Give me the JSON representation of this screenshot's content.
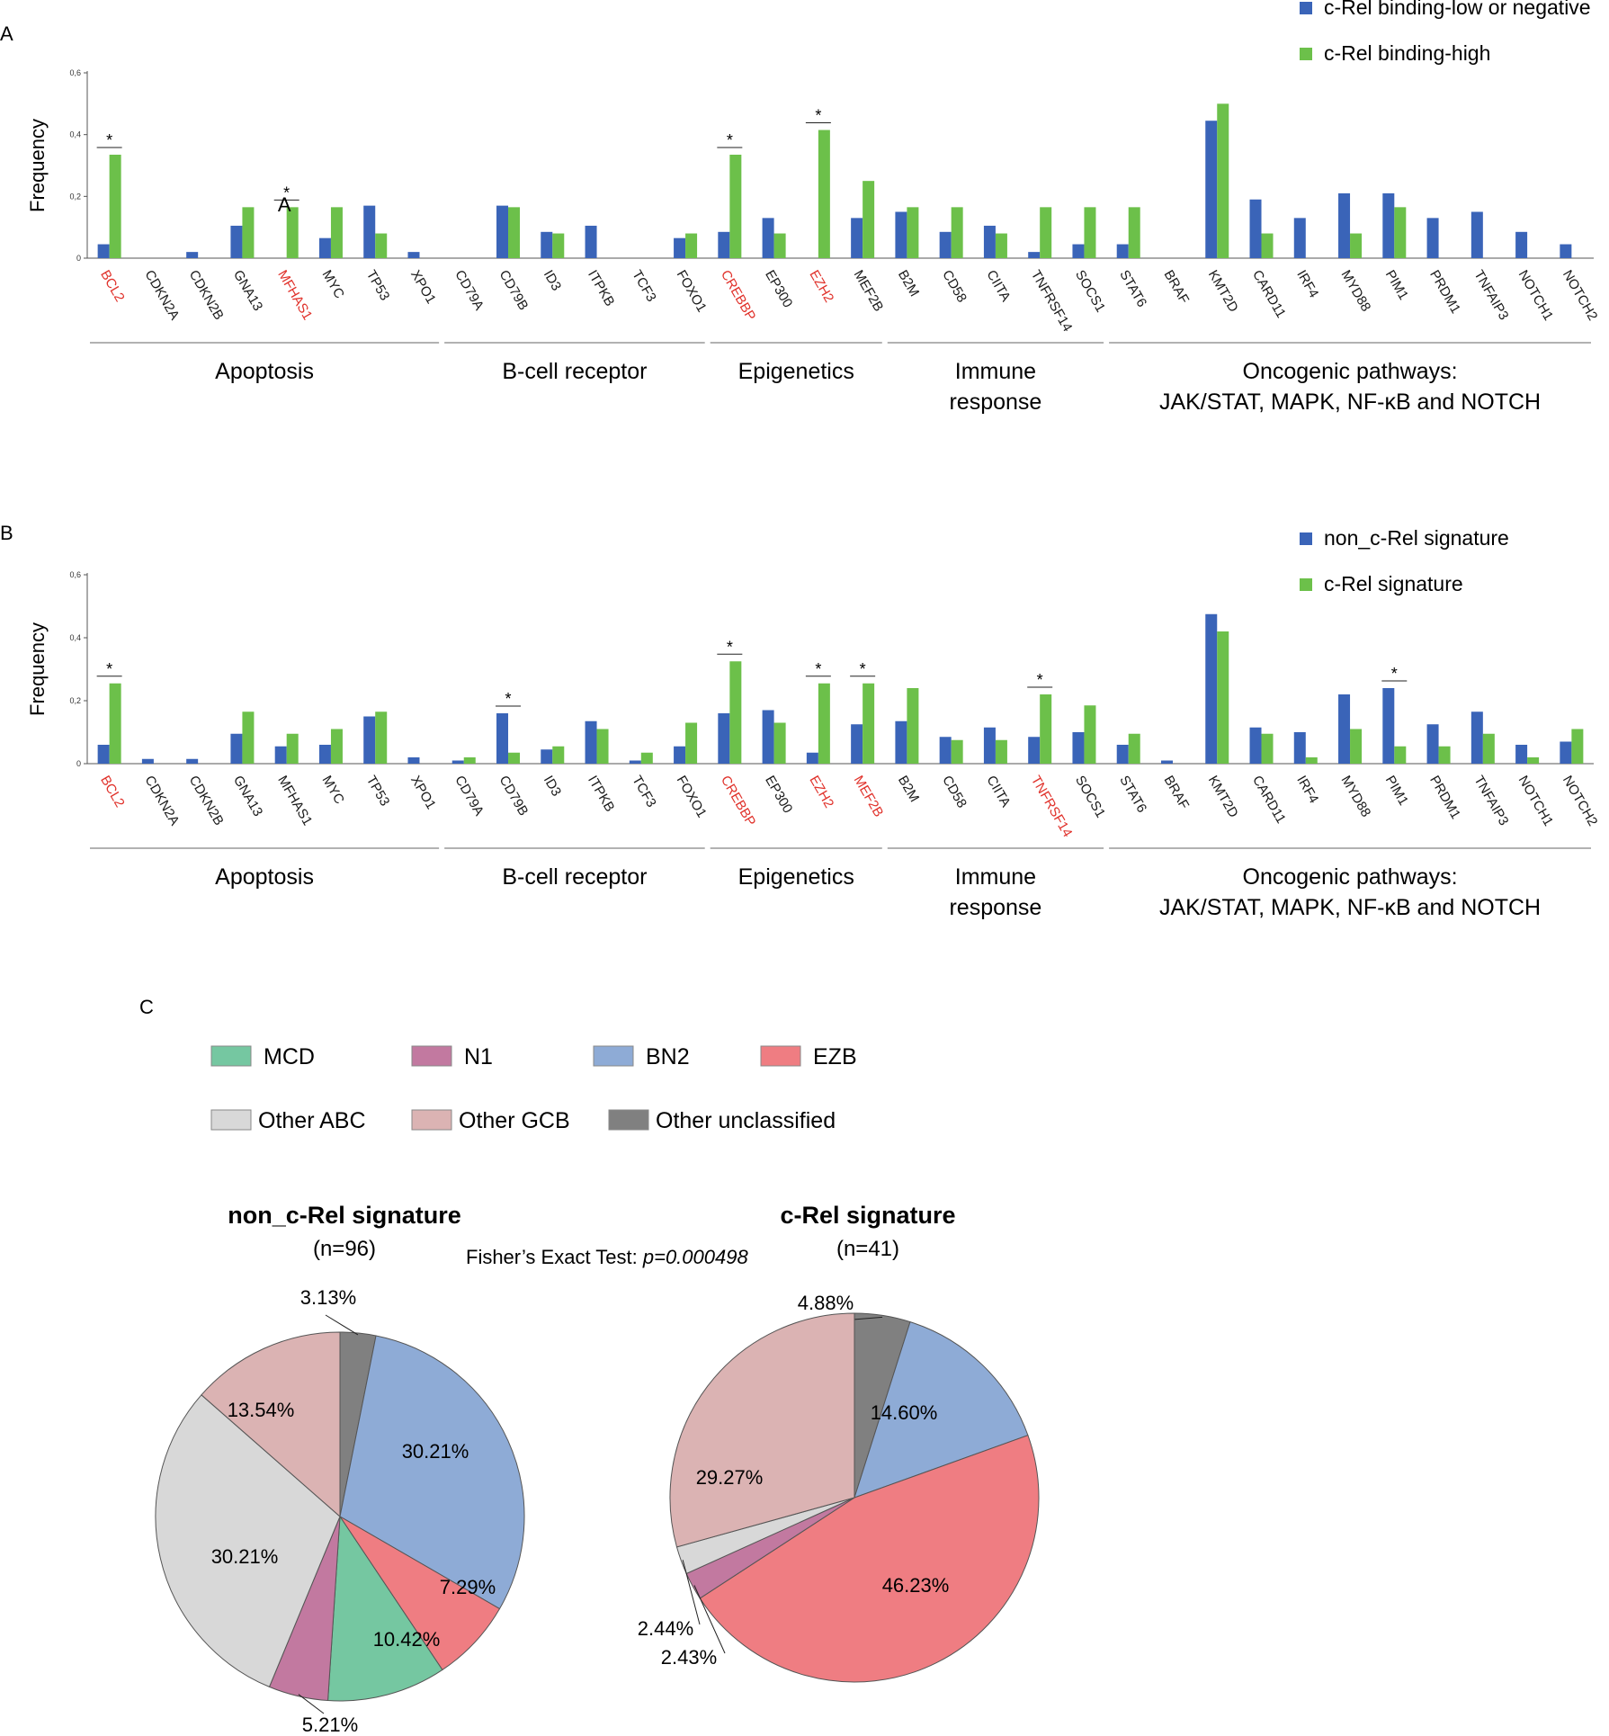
{
  "figure": {
    "panels": [
      {
        "letter": "A"
      },
      {
        "letter": "B"
      },
      {
        "letter": "C"
      }
    ]
  },
  "colors": {
    "series_blue": "#3a64b8",
    "series_green": "#6cc04a",
    "highlight_red": "#e0312a",
    "axis": "#555555",
    "MCD": "#75c7a1",
    "N1": "#c279a0",
    "BN2": "#8eabd6",
    "EZB": "#ef7d82",
    "Other ABC": "#d8d8d8",
    "Other GCB": "#dbb3b3",
    "Other unclassified": "#808080"
  },
  "chart_data": [
    {
      "type": "bar",
      "panel": "A",
      "title": "",
      "xlabel": "",
      "ylabel": "Frequency",
      "ylim": [
        0,
        0.6
      ],
      "yticks": [
        "0",
        "0,2",
        "0,4",
        "0,6"
      ],
      "yticks_values": [
        0,
        0.2,
        0.4,
        0.6
      ],
      "categories": [
        "BCL2",
        "CDKN2A",
        "CDKN2B",
        "GNA13",
        "MFHAS1",
        "MYC",
        "TP53",
        "XPO1",
        "CD79A",
        "CD79B",
        "ID3",
        "ITPKB",
        "TCF3",
        "FOXO1",
        "CREBBP",
        "EP300",
        "EZH2",
        "MEF2B",
        "B2M",
        "CD58",
        "CIITA",
        "TNFRSF14",
        "SOCS1",
        "STAT6",
        "BRAF",
        "KMT2D",
        "CARD11",
        "IRF4",
        "MYD88",
        "PIM1",
        "PRDM1",
        "TNFAIP3",
        "NOTCH1",
        "NOTCH2"
      ],
      "highlighted_categories": [
        "BCL2",
        "MFHAS1",
        "CREBBP",
        "EZH2"
      ],
      "significant_categories": [
        "BCL2",
        "MFHAS1",
        "CREBBP",
        "EZH2"
      ],
      "significance_marker": "*",
      "series": [
        {
          "name": "c-Rel binding-low or negative",
          "values": [
            0.045,
            0,
            0.02,
            0.105,
            0,
            0.065,
            0.17,
            0.02,
            0,
            0.17,
            0.085,
            0.105,
            0,
            0.065,
            0.085,
            0.13,
            0,
            0.13,
            0.15,
            0.085,
            0.105,
            0.02,
            0.045,
            0.045,
            0,
            0.445,
            0.19,
            0.13,
            0.21,
            0.21,
            0.13,
            0.15,
            0.085,
            0.045
          ]
        },
        {
          "name": "c-Rel binding-high",
          "values": [
            0.335,
            0,
            0,
            0.165,
            0.165,
            0.165,
            0.08,
            0,
            0,
            0.165,
            0.08,
            0,
            0,
            0.08,
            0.335,
            0.08,
            0.415,
            0.25,
            0.165,
            0.165,
            0.08,
            0.165,
            0.165,
            0.165,
            0,
            0.5,
            0.08,
            0,
            0.08,
            0.165,
            0,
            0,
            0,
            0
          ]
        }
      ],
      "legend": [
        "c-Rel binding-low or negative",
        "c-Rel binding-high"
      ],
      "legend_position": "top-right",
      "groups": [
        {
          "lines": [
            "Apoptosis"
          ],
          "from": "BCL2",
          "to": "XPO1"
        },
        {
          "lines": [
            "B-cell receptor"
          ],
          "from": "CD79A",
          "to": "FOXO1"
        },
        {
          "lines": [
            "Epigenetics"
          ],
          "from": "CREBBP",
          "to": "MEF2B"
        },
        {
          "lines": [
            "Immune",
            "response"
          ],
          "from": "B2M",
          "to": "SOCS1"
        },
        {
          "lines": [
            "Oncogenic pathways:",
            "JAK/STAT, MAPK, NF-κB and NOTCH"
          ],
          "from": "STAT6",
          "to": "NOTCH2"
        }
      ],
      "annotation": "A"
    },
    {
      "type": "bar",
      "panel": "B",
      "title": "",
      "xlabel": "",
      "ylabel": "Frequency",
      "ylim": [
        0,
        0.6
      ],
      "yticks": [
        "0",
        "0,2",
        "0,4",
        "0,6"
      ],
      "yticks_values": [
        0,
        0.2,
        0.4,
        0.6
      ],
      "categories": [
        "BCL2",
        "CDKN2A",
        "CDKN2B",
        "GNA13",
        "MFHAS1",
        "MYC",
        "TP53",
        "XPO1",
        "CD79A",
        "CD79B",
        "ID3",
        "ITPKB",
        "TCF3",
        "FOXO1",
        "CREBBP",
        "EP300",
        "EZH2",
        "MEF2B",
        "B2M",
        "CD58",
        "CIITA",
        "TNFRSF14",
        "SOCS1",
        "STAT6",
        "BRAF",
        "KMT2D",
        "CARD11",
        "IRF4",
        "MYD88",
        "PIM1",
        "PRDM1",
        "TNFAIP3",
        "NOTCH1",
        "NOTCH2"
      ],
      "highlighted_categories": [
        "BCL2",
        "CREBBP",
        "EZH2",
        "MEF2B",
        "TNFRSF14"
      ],
      "significant_categories": [
        "BCL2",
        "CD79B",
        "CREBBP",
        "EZH2",
        "MEF2B",
        "TNFRSF14",
        "PIM1"
      ],
      "significance_marker": "*",
      "series": [
        {
          "name": "non_c-Rel signature",
          "values": [
            0.06,
            0.015,
            0.015,
            0.095,
            0.055,
            0.06,
            0.15,
            0.02,
            0.01,
            0.16,
            0.045,
            0.135,
            0.01,
            0.055,
            0.16,
            0.17,
            0.035,
            0.125,
            0.135,
            0.085,
            0.115,
            0.085,
            0.1,
            0.06,
            0.01,
            0.475,
            0.115,
            0.1,
            0.22,
            0.24,
            0.125,
            0.165,
            0.06,
            0.07
          ]
        },
        {
          "name": "c-Rel signature",
          "values": [
            0.255,
            0,
            0,
            0.165,
            0.095,
            0.11,
            0.165,
            0,
            0.02,
            0.035,
            0.055,
            0.11,
            0.035,
            0.13,
            0.325,
            0.13,
            0.255,
            0.255,
            0.24,
            0.075,
            0.075,
            0.22,
            0.185,
            0.095,
            0,
            0.42,
            0.095,
            0.02,
            0.11,
            0.055,
            0.055,
            0.095,
            0.02,
            0.11
          ]
        }
      ],
      "legend": [
        "non_c-Rel signature",
        "c-Rel signature"
      ],
      "legend_position": "top-right",
      "groups": [
        {
          "lines": [
            "Apoptosis"
          ],
          "from": "BCL2",
          "to": "XPO1"
        },
        {
          "lines": [
            "B-cell receptor"
          ],
          "from": "CD79A",
          "to": "FOXO1"
        },
        {
          "lines": [
            "Epigenetics"
          ],
          "from": "CREBBP",
          "to": "MEF2B"
        },
        {
          "lines": [
            "Immune",
            "response"
          ],
          "from": "B2M",
          "to": "SOCS1"
        },
        {
          "lines": [
            "Oncogenic pathways:",
            "JAK/STAT, MAPK, NF-κB and NOTCH"
          ],
          "from": "STAT6",
          "to": "NOTCH2"
        }
      ]
    },
    {
      "type": "pie",
      "panel": "C",
      "title": "non_c-Rel signature",
      "subtitle": "(n=96)",
      "slices": [
        {
          "label": "Other unclassified",
          "value": 3.13,
          "text": "3.13%"
        },
        {
          "label": "BN2",
          "value": 30.21,
          "text": "30.21%"
        },
        {
          "label": "EZB",
          "value": 7.29,
          "text": "7.29%"
        },
        {
          "label": "MCD",
          "value": 10.42,
          "text": "10.42%"
        },
        {
          "label": "N1",
          "value": 5.21,
          "text": "5.21%"
        },
        {
          "label": "Other ABC",
          "value": 30.21,
          "text": "30.21%"
        },
        {
          "label": "Other GCB",
          "value": 13.54,
          "text": "13.54%"
        }
      ]
    },
    {
      "type": "pie",
      "panel": "C",
      "title": "c-Rel signature",
      "subtitle": "(n=41)",
      "slices": [
        {
          "label": "Other unclassified",
          "value": 4.88,
          "text": "4.88%"
        },
        {
          "label": "BN2",
          "value": 14.6,
          "text": "14.60%"
        },
        {
          "label": "EZB",
          "value": 46.23,
          "text": "46.23%"
        },
        {
          "label": "N1",
          "value": 2.43,
          "text": "2.43%"
        },
        {
          "label": "Other ABC",
          "value": 2.44,
          "text": "2.44%"
        },
        {
          "label": "Other GCB",
          "value": 29.27,
          "text": "29.27%"
        }
      ]
    }
  ],
  "pie_legend": [
    {
      "label": "MCD"
    },
    {
      "label": "N1"
    },
    {
      "label": "BN2"
    },
    {
      "label": "EZB"
    },
    {
      "label": "Other ABC"
    },
    {
      "label": "Other GCB"
    },
    {
      "label": "Other unclassified"
    }
  ],
  "fisher": {
    "label": "Fisher’s Exact Test: ",
    "value": "p=0.000498"
  }
}
